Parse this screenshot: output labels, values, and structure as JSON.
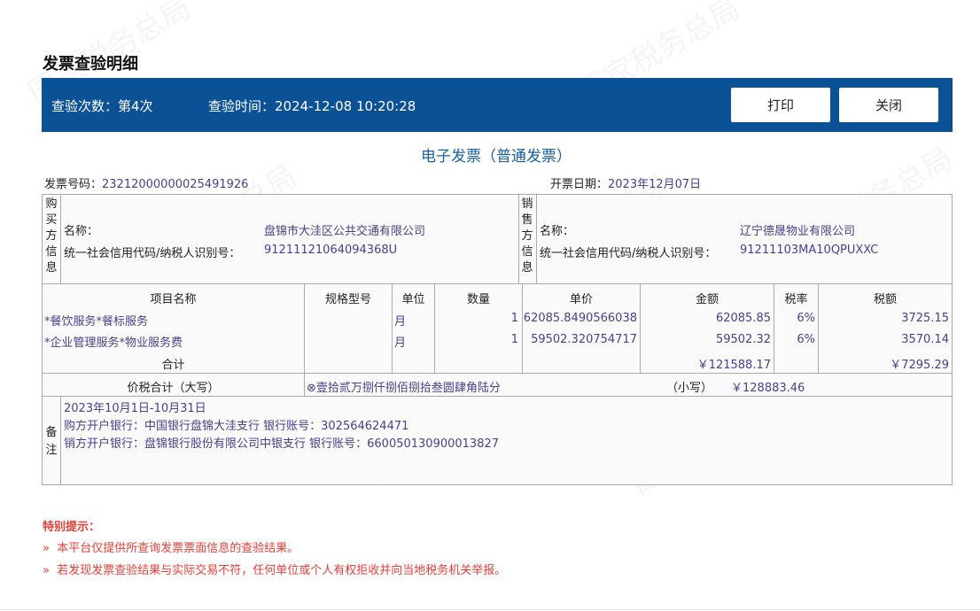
{
  "page_title": "发票查验明细",
  "header": {
    "check_count": "查验次数：第4次",
    "check_time": "查验时间：2024-12-08 10:20:28",
    "print_label": "打印",
    "close_label": "关闭",
    "bg_color": "#0b5196"
  },
  "invoice": {
    "type_title": "电子发票（普通发票）",
    "number_label": "发票号码：",
    "number": "23212000000025491926",
    "date_label": "开票日期：",
    "date": "2023年12月07日",
    "buyer": {
      "section_label": "购买方信息",
      "name_label": "名称：",
      "name": "盘锦市大洼区公共交通有限公司",
      "id_label": "统一社会信用代码/纳税人识别号：",
      "id": "91211121064094368U"
    },
    "seller": {
      "section_label": "销售方信息",
      "name_label": "名称：",
      "name": "辽宁德晟物业有限公司",
      "id_label": "统一社会信用代码/纳税人识别号：",
      "id": "91211103MA10QPUXXC"
    },
    "columns": [
      "项目名称",
      "规格型号",
      "单位",
      "数量",
      "单价",
      "金额",
      "税率",
      "税额"
    ],
    "items": [
      {
        "name": "*餐饮服务*餐标服务",
        "spec": "",
        "unit": "月",
        "qty": "1",
        "price": "62085.8490566038",
        "amount": "62085.85",
        "rate": "6%",
        "tax": "3725.15"
      },
      {
        "name": "*企业管理服务*物业服务费",
        "spec": "",
        "unit": "月",
        "qty": "1",
        "price": "59502.320754717",
        "amount": "59502.32",
        "rate": "6%",
        "tax": "3570.14"
      }
    ],
    "total_label": "合计",
    "total_amount": "￥121588.17",
    "total_tax": "￥7295.29",
    "grand_label": "价税合计（大写）",
    "grand_upper": "⊗壹拾贰万捌仟捌佰捌拾叁圆肆角陆分",
    "grand_small_label": "（小写）",
    "grand_small": "￥128883.46",
    "remarks_label": "备注",
    "remarks": [
      "2023年10月1日-10月31日",
      "购方开户银行：中国银行盘锦大洼支行 银行账号：302564624471",
      "销方开户银行：盘锦银行股份有限公司中银支行 银行账号：660050130900013827"
    ]
  },
  "notice": {
    "title": "特别提示：",
    "items": [
      "本平台仅提供所查询发票票面信息的查验结果。",
      "若发现发票查验结果与实际交易不符，任何单位或个人有权拒收并向当地税务机关举报。"
    ],
    "bullet": "»"
  },
  "watermark": "国家税务总局"
}
